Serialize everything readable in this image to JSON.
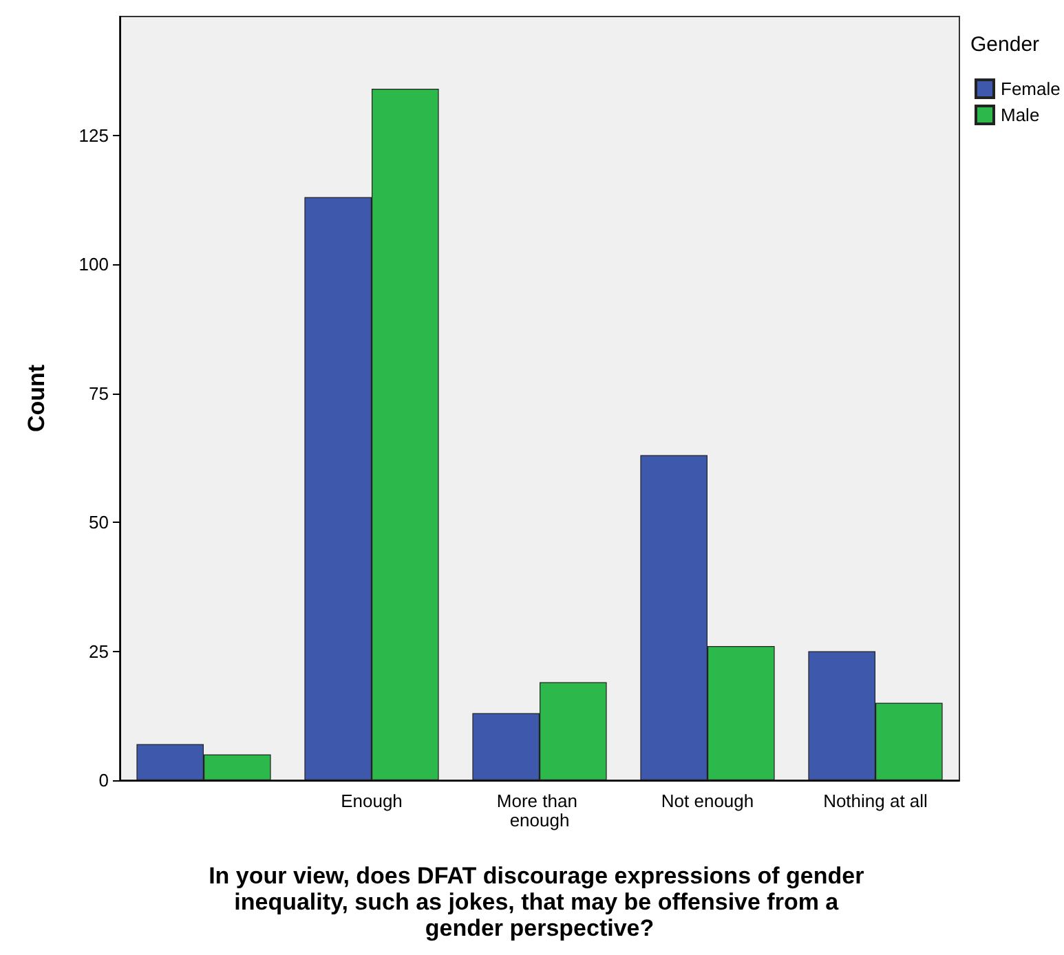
{
  "chart_data": {
    "type": "bar",
    "xlabel": "In your view, does DFAT discourage expressions of gender inequality, such as jokes, that may be offensive from a gender perspective?",
    "ylabel": "Count",
    "legend_title": "Gender",
    "categories": [
      null,
      "Enough",
      "More than enough",
      "Not enough",
      "Nothing at all"
    ],
    "series": [
      {
        "name": "Female",
        "color": "#3e58ac",
        "values": [
          7,
          113,
          13,
          63,
          25
        ]
      },
      {
        "name": "Male",
        "color": "#2db84b",
        "values": [
          5,
          134,
          19,
          26,
          15
        ]
      }
    ],
    "ylim": [
      0,
      148
    ],
    "yticks": [
      0,
      25,
      50,
      75,
      100,
      125
    ],
    "grid": false,
    "legend": "top right"
  }
}
